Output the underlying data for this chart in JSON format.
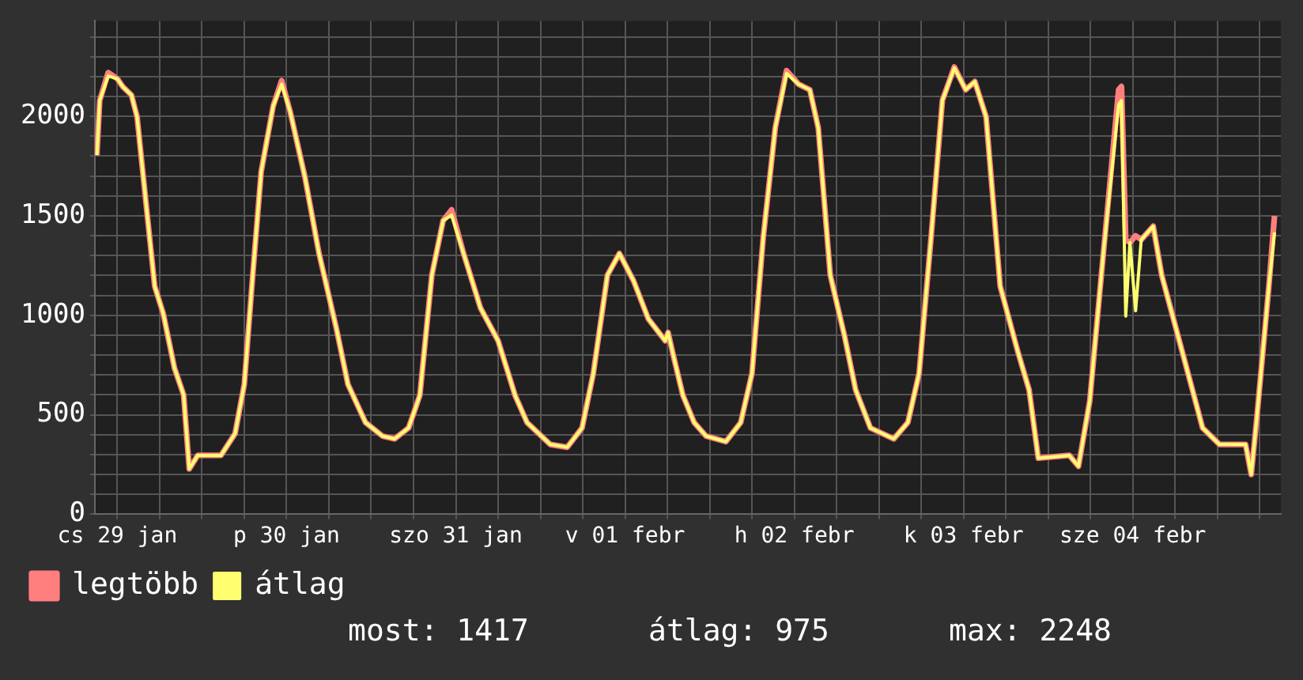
{
  "chart_data": {
    "type": "line",
    "x": [
      "--01-29T09:06",
      "--01-29T09:30",
      "--01-29T10:42",
      "--01-29T12:00",
      "--01-29T12:48",
      "--01-29T14:00",
      "--01-29T14:48",
      "--01-29T16:00",
      "--01-29T17:18",
      "--01-29T18:30",
      "--01-29T20:06",
      "--01-29T21:24",
      "--01-29T22:12",
      "--01-29T23:24",
      "--01-30T02:42",
      "--01-30T04:42",
      "--01-30T06:00",
      "--01-30T07:12",
      "--01-30T08:24",
      "--01-30T10:06",
      "--01-30T11:18",
      "--01-30T12:30",
      "--01-30T14:36",
      "--01-30T16:36",
      "--01-30T19:06",
      "--01-30T20:42",
      "--01-30T23:12",
      "--01-31T01:36",
      "--01-31T03:18",
      "--01-31T05:18",
      "--01-31T06:54",
      "--01-31T08:36",
      "--01-31T10:12",
      "--01-31T11:24",
      "--01-31T13:06",
      "--01-31T15:30",
      "--01-31T18:00",
      "--01-31T20:24",
      "--01-31T22:06",
      "--02-01T01:24",
      "--02-01T03:48",
      "--02-01T05:54",
      "--02-01T07:30",
      "--02-01T09:30",
      "--02-01T11:12",
      "--02-01T13:12",
      "--02-01T15:18",
      "--02-01T17:42",
      "--02-01T18:06",
      "--02-01T18:54",
      "--02-01T20:12",
      "--02-01T21:48",
      "--02-01T23:30",
      "--02-02T02:18",
      "--02-02T04:24",
      "--02-02T06:00",
      "--02-02T07:36",
      "--02-02T09:18",
      "--02-02T10:54",
      "--02-02T12:36",
      "--02-02T14:12",
      "--02-02T15:24",
      "--02-02T17:06",
      "--02-02T19:06",
      "--02-02T20:42",
      "--02-02T22:48",
      "--02-03T02:06",
      "--02-03T04:06",
      "--02-03T05:42",
      "--02-03T07:24",
      "--02-03T09:00",
      "--02-03T10:42",
      "--02-03T12:18",
      "--02-03T13:36",
      "--02-03T15:12",
      "--02-03T17:12",
      "--02-03T19:42",
      "--02-03T21:18",
      "--02-03T22:36",
      "--02-04T03:00",
      "--02-04T04:18",
      "--02-04T05:54",
      "--02-04T07:54",
      "--02-04T10:00",
      "--02-04T10:24",
      "--02-04T11:00",
      "--02-04T11:36",
      "--02-04T12:24",
      "--02-04T13:12",
      "--02-04T14:54",
      "--02-04T16:06",
      "--02-04T18:36",
      "--02-04T21:54",
      "--02-05T00:18",
      "--02-05T04:00",
      "--02-05T04:48",
      "--02-05T05:36",
      "--02-05T07:18",
      "--02-05T08:06"
    ],
    "series": [
      {
        "name": "legtöbb",
        "color": "#ff7f7f",
        "values": [
          1805,
          2080,
          2220,
          2189,
          2148,
          2107,
          1997,
          1586,
          1146,
          1010,
          735,
          600,
          228,
          296,
          296,
          406,
          653,
          1202,
          1723,
          2052,
          2180,
          2025,
          1695,
          1311,
          928,
          653,
          461,
          393,
          379,
          434,
          598,
          1202,
          1476,
          1530,
          1311,
          1037,
          872,
          598,
          461,
          351,
          337,
          434,
          708,
          1202,
          1311,
          1174,
          982,
          872,
          914,
          790,
          598,
          461,
          393,
          365,
          461,
          708,
          1393,
          1942,
          2230,
          2162,
          2134,
          1942,
          1202,
          900,
          625,
          434,
          379,
          461,
          708,
          1393,
          2080,
          2248,
          2134,
          2175,
          1997,
          1146,
          817,
          625,
          282,
          296,
          241,
          570,
          1339,
          2134,
          2150,
          1380,
          1366,
          1400,
          1380,
          1448,
          1202,
          872,
          434,
          351,
          351,
          200,
          488,
          1146,
          1500
        ]
      },
      {
        "name": "átlag",
        "color": "#ffff70",
        "values": [
          1805,
          2080,
          2203,
          2189,
          2148,
          2107,
          1997,
          1586,
          1146,
          1010,
          735,
          600,
          228,
          296,
          296,
          406,
          653,
          1202,
          1723,
          2052,
          2162,
          2025,
          1695,
          1311,
          928,
          653,
          461,
          393,
          379,
          434,
          598,
          1202,
          1476,
          1504,
          1311,
          1037,
          872,
          598,
          461,
          351,
          337,
          434,
          708,
          1202,
          1311,
          1174,
          982,
          872,
          914,
          790,
          598,
          461,
          393,
          365,
          461,
          708,
          1393,
          1942,
          2216,
          2162,
          2134,
          1942,
          1202,
          900,
          625,
          434,
          379,
          461,
          708,
          1393,
          2080,
          2244,
          2134,
          2175,
          1997,
          1146,
          817,
          625,
          282,
          296,
          241,
          570,
          1339,
          2060,
          2080,
          996,
          1366,
          1023,
          1380,
          1448,
          1202,
          872,
          434,
          351,
          351,
          200,
          488,
          1146,
          1417
        ]
      }
    ],
    "xlim": [
      "--01-29T08:48",
      "--02-05T09:00"
    ],
    "xticks": [
      {
        "value": "--01-29T12:00",
        "label": "cs 29 jan"
      },
      {
        "value": "--01-29T18:00",
        "label": null
      },
      {
        "value": "--01-30T00:00",
        "label": null
      },
      {
        "value": "--01-30T06:00",
        "label": null
      },
      {
        "value": "--01-30T12:00",
        "label": "p 30 jan"
      },
      {
        "value": "--01-30T18:00",
        "label": null
      },
      {
        "value": "--01-31T00:00",
        "label": null
      },
      {
        "value": "--01-31T06:00",
        "label": null
      },
      {
        "value": "--01-31T12:00",
        "label": "szo 31 jan"
      },
      {
        "value": "--01-31T18:00",
        "label": null
      },
      {
        "value": "--02-01T00:00",
        "label": null
      },
      {
        "value": "--02-01T06:00",
        "label": null
      },
      {
        "value": "--02-01T12:00",
        "label": "v 01 febr"
      },
      {
        "value": "--02-01T18:00",
        "label": null
      },
      {
        "value": "--02-02T00:00",
        "label": null
      },
      {
        "value": "--02-02T06:00",
        "label": null
      },
      {
        "value": "--02-02T12:00",
        "label": "h 02 febr"
      },
      {
        "value": "--02-02T18:00",
        "label": null
      },
      {
        "value": "--02-03T00:00",
        "label": null
      },
      {
        "value": "--02-03T06:00",
        "label": null
      },
      {
        "value": "--02-03T12:00",
        "label": "k 03 febr"
      },
      {
        "value": "--02-03T18:00",
        "label": null
      },
      {
        "value": "--02-04T00:00",
        "label": null
      },
      {
        "value": "--02-04T06:00",
        "label": null
      },
      {
        "value": "--02-04T12:00",
        "label": "sze 04 febr"
      },
      {
        "value": "--02-04T18:00",
        "label": null
      },
      {
        "value": "--02-05T00:00",
        "label": null
      },
      {
        "value": "--02-05T06:00",
        "label": null
      }
    ],
    "ylim": [
      0,
      2480
    ],
    "yticks": [
      0,
      {
        "value": 100,
        "label": null
      },
      {
        "value": 200,
        "label": null
      },
      {
        "value": 300,
        "label": null
      },
      {
        "value": 400,
        "label": null
      },
      500,
      {
        "value": 600,
        "label": null
      },
      {
        "value": 700,
        "label": null
      },
      {
        "value": 800,
        "label": null
      },
      {
        "value": 900,
        "label": null
      },
      1000,
      {
        "value": 1100,
        "label": null
      },
      {
        "value": 1200,
        "label": null
      },
      {
        "value": 1300,
        "label": null
      },
      {
        "value": 1400,
        "label": null
      },
      1500,
      {
        "value": 1600,
        "label": null
      },
      {
        "value": 1700,
        "label": null
      },
      {
        "value": 1800,
        "label": null
      },
      {
        "value": 1900,
        "label": null
      },
      2000,
      {
        "value": 2100,
        "label": null
      },
      {
        "value": 2200,
        "label": null
      },
      {
        "value": 2300,
        "label": null
      },
      {
        "value": 2400,
        "label": null
      }
    ],
    "grid": true,
    "legend": "bottom left",
    "marker": "none",
    "line_style": "solid",
    "annotations": [
      "most: 1417",
      "átlag: 975",
      "max: 2248"
    ]
  }
}
